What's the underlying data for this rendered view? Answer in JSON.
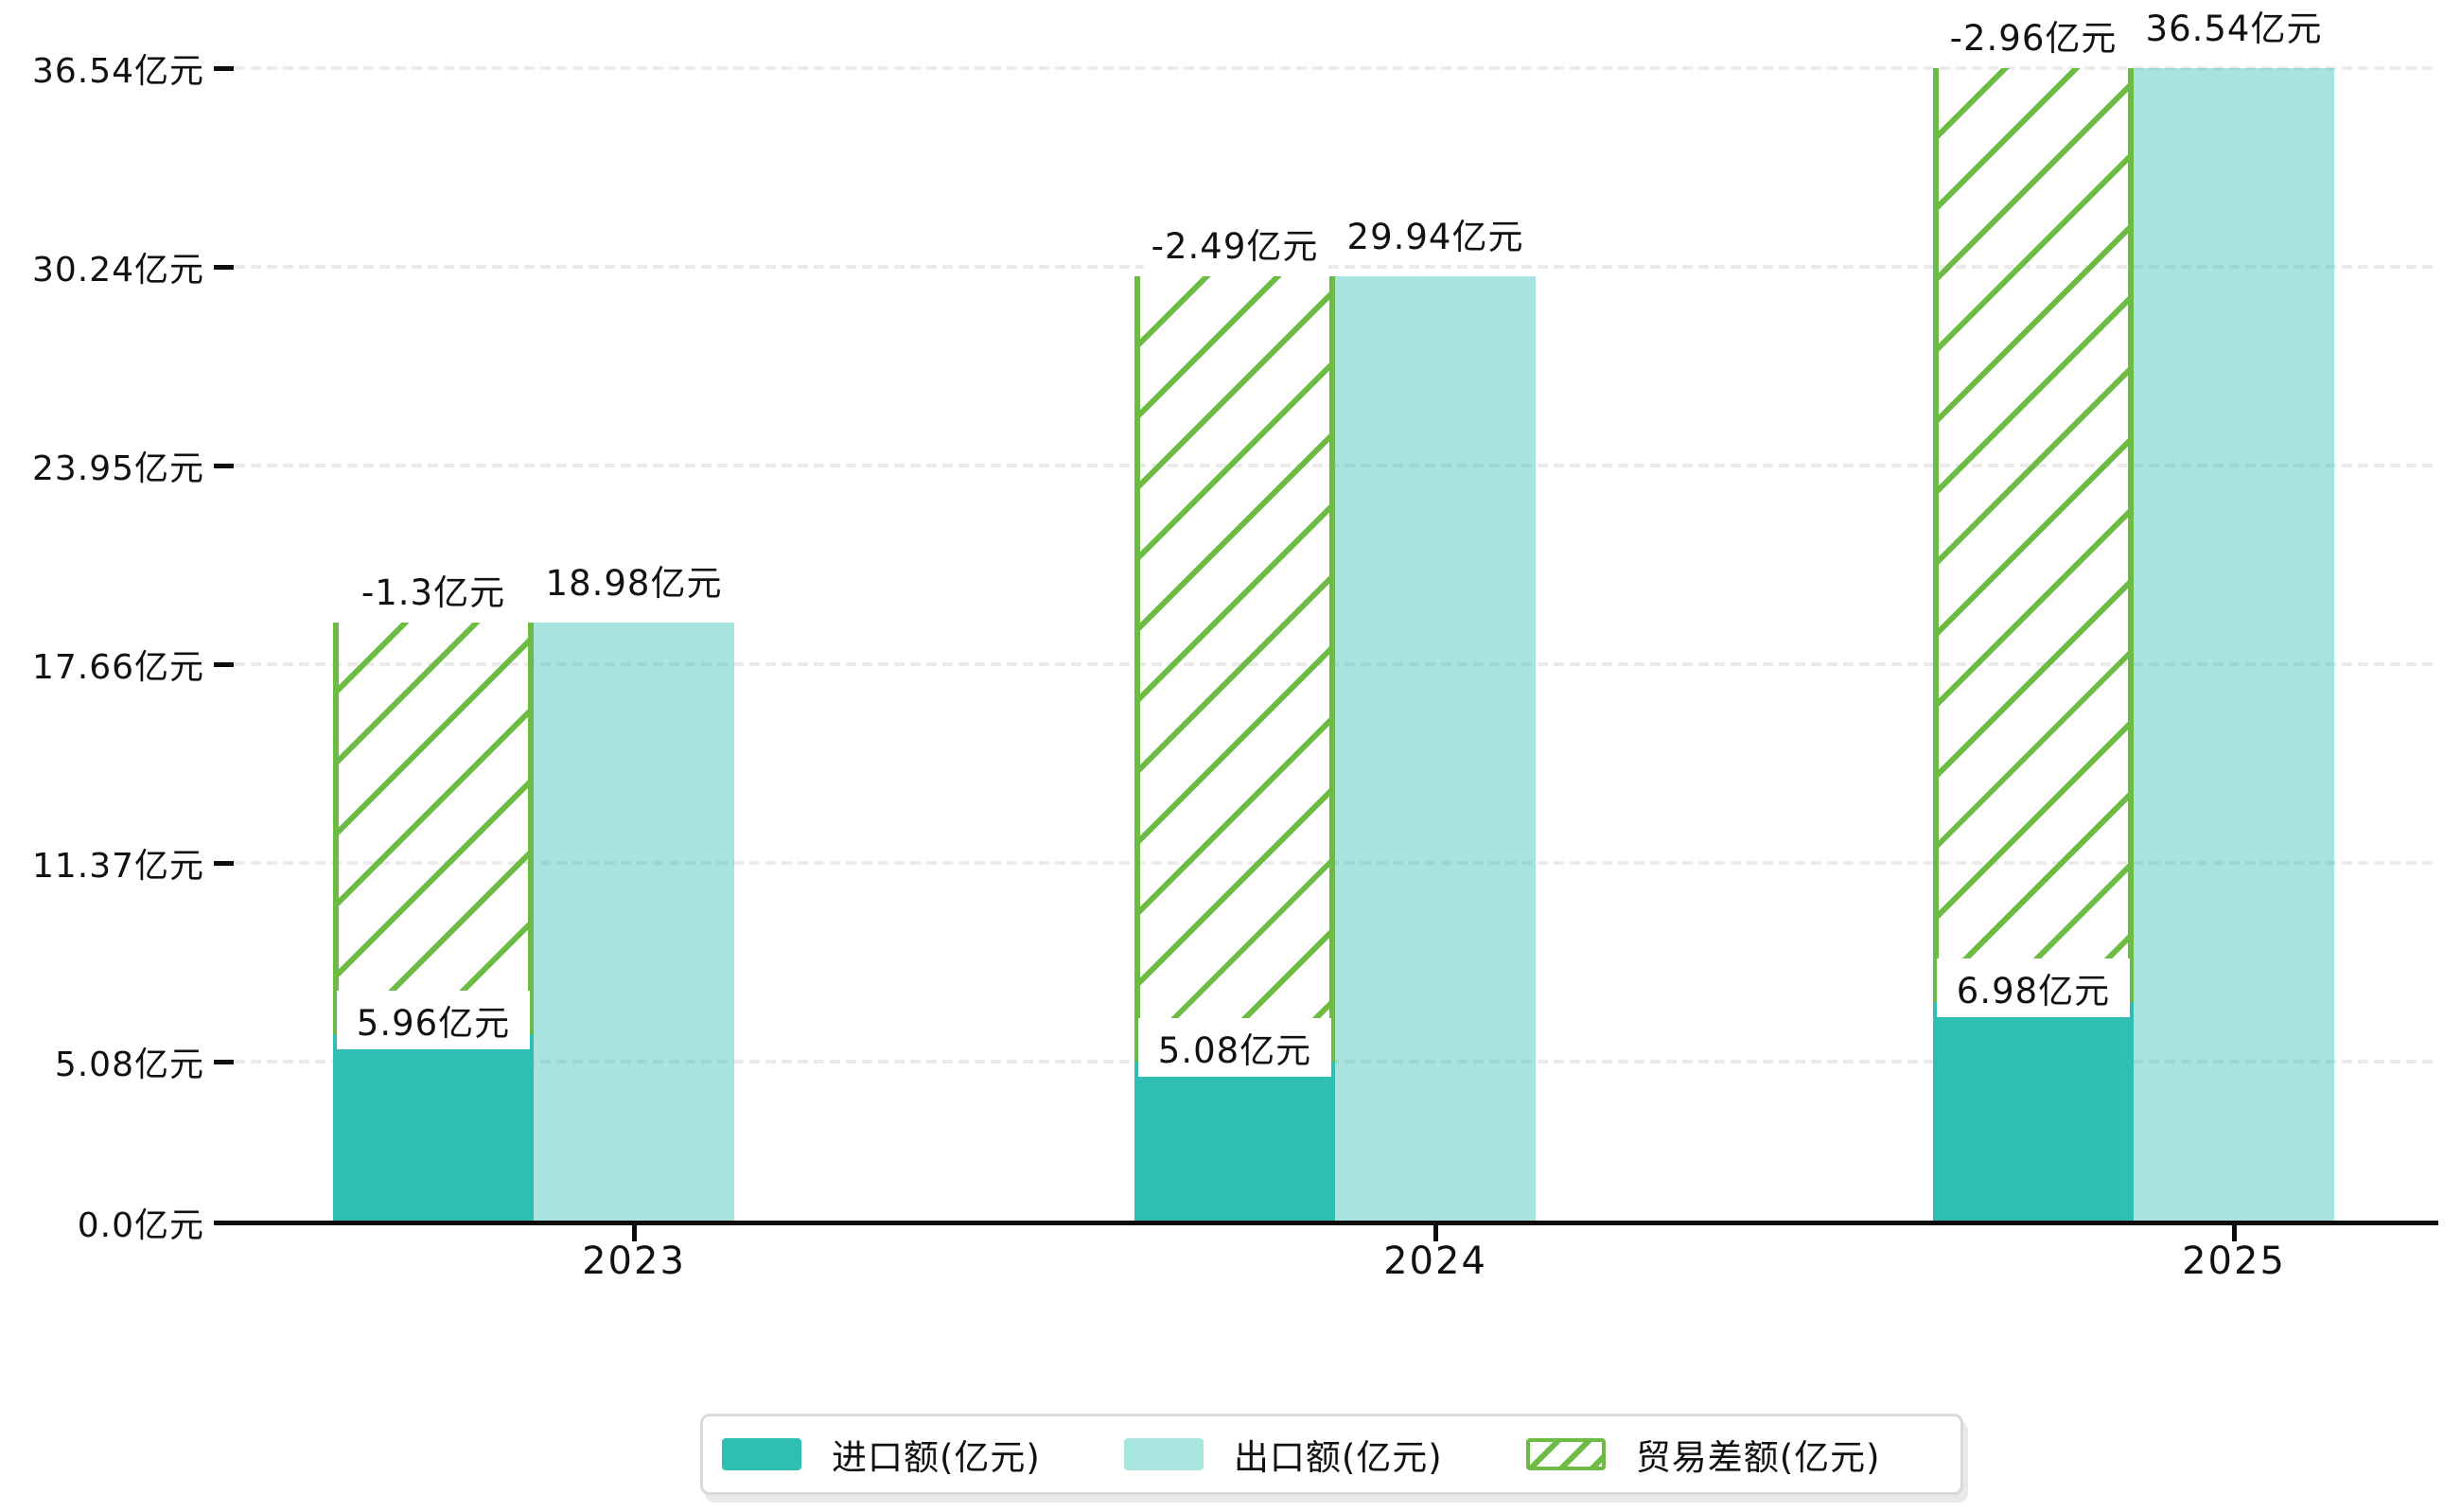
{
  "page": {
    "background": "#ffffff"
  },
  "chart_data": {
    "type": "bar",
    "title": "",
    "categories": [
      "2023",
      "2024",
      "2025"
    ],
    "unit": "亿元",
    "series": [
      {
        "name": "进口额(亿元)",
        "type": "bar",
        "color": "#2fbfb2",
        "values": [
          5.96,
          5.08,
          6.98
        ],
        "data_labels": [
          "5.96亿元",
          "5.08亿元",
          "6.98亿元"
        ],
        "label_style": "white-box-above-bar"
      },
      {
        "name": "出口额(亿元)",
        "type": "bar",
        "color": "#a9e6e0",
        "values": [
          18.98,
          29.94,
          36.54
        ],
        "data_labels": [
          "18.98亿元",
          "29.94亿元",
          "36.54亿元"
        ],
        "label_style": "text-above-bar"
      },
      {
        "name": "贸易差额(亿元)",
        "type": "bar-hatched",
        "color": "#6cbb43",
        "values": [
          -1.3,
          -2.49,
          -2.96
        ],
        "data_labels": [
          "-1.3亿元",
          "-2.49亿元",
          "-2.96亿元"
        ],
        "label_style": "text-above-bar",
        "drawn_as": "hatched band over import column spanning from import-bar top to export-bar top"
      }
    ],
    "x_axis": {
      "labels": [
        "2023",
        "2024",
        "2025"
      ]
    },
    "y_axis": {
      "grid": "dashed",
      "ticks": [
        {
          "value": 0,
          "label": "0.0亿元"
        },
        {
          "value": 5.08,
          "label": "5.08亿元"
        },
        {
          "value": 11.37,
          "label": "11.37亿元"
        },
        {
          "value": 17.66,
          "label": "17.66亿元"
        },
        {
          "value": 23.95,
          "label": "23.95亿元"
        },
        {
          "value": 30.24,
          "label": "30.24亿元"
        },
        {
          "value": 36.54,
          "label": "36.54亿元"
        }
      ]
    },
    "legend": {
      "position": "bottom-center",
      "entries": [
        {
          "label": "进口额(亿元)",
          "swatch": "solid-teal"
        },
        {
          "label": "出口额(亿元)",
          "swatch": "solid-light-teal"
        },
        {
          "label": "贸易差额(亿元)",
          "swatch": "green-hatched"
        }
      ]
    }
  },
  "colors": {
    "import_teal": "#2fbfb2",
    "export_light_teal": "#a9e6e0",
    "diff_green": "#6cbb43",
    "gridline": "#ebebeb",
    "axis": "#0c0c0c",
    "text": "#111111",
    "legend_border": "#d9d9d9",
    "label_box_bg": "#ffffff"
  }
}
